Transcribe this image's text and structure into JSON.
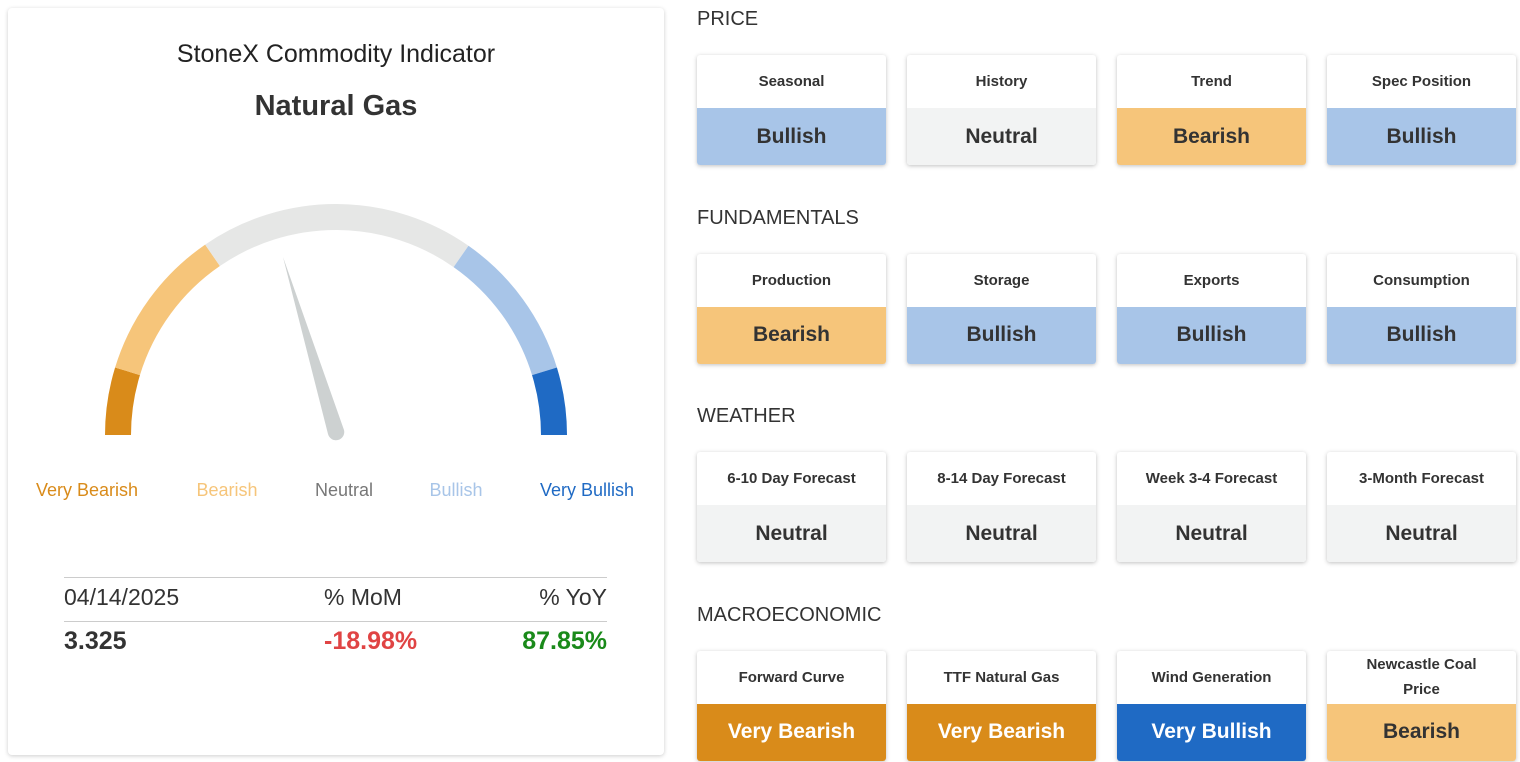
{
  "gauge": {
    "title": "StoneX Commodity Indicator",
    "commodity": "Natural Gas",
    "legend": [
      "Very Bearish",
      "Bearish",
      "Neutral",
      "Bullish",
      "Very Bullish"
    ]
  },
  "summary": {
    "headers": [
      "04/14/2025",
      "% MoM",
      "% YoY"
    ],
    "values": [
      "3.325",
      "-18.98%",
      "87.85%"
    ]
  },
  "sections": [
    {
      "title": "PRICE",
      "cards": [
        {
          "label": "Seasonal",
          "signal": "Bullish"
        },
        {
          "label": "History",
          "signal": "Neutral"
        },
        {
          "label": "Trend",
          "signal": "Bearish"
        },
        {
          "label": "Spec Position",
          "signal": "Bullish"
        }
      ]
    },
    {
      "title": "FUNDAMENTALS",
      "cards": [
        {
          "label": "Production",
          "signal": "Bearish"
        },
        {
          "label": "Storage",
          "signal": "Bullish"
        },
        {
          "label": "Exports",
          "signal": "Bullish"
        },
        {
          "label": "Consumption",
          "signal": "Bullish"
        }
      ]
    },
    {
      "title": "WEATHER",
      "cards": [
        {
          "label": "6-10 Day Forecast",
          "signal": "Neutral"
        },
        {
          "label": "8-14 Day Forecast",
          "signal": "Neutral"
        },
        {
          "label": "Week 3-4 Forecast",
          "signal": "Neutral"
        },
        {
          "label": "3-Month Forecast",
          "signal": "Neutral"
        }
      ]
    },
    {
      "title": "MACROECONOMIC",
      "cards": [
        {
          "label": "Forward Curve",
          "signal": "Very Bearish"
        },
        {
          "label": "TTF Natural Gas",
          "signal": "Very Bearish"
        },
        {
          "label": "Wind Generation",
          "signal": "Very Bullish"
        },
        {
          "label": "Newcastle Coal Price",
          "signal": "Bearish"
        }
      ]
    }
  ]
}
